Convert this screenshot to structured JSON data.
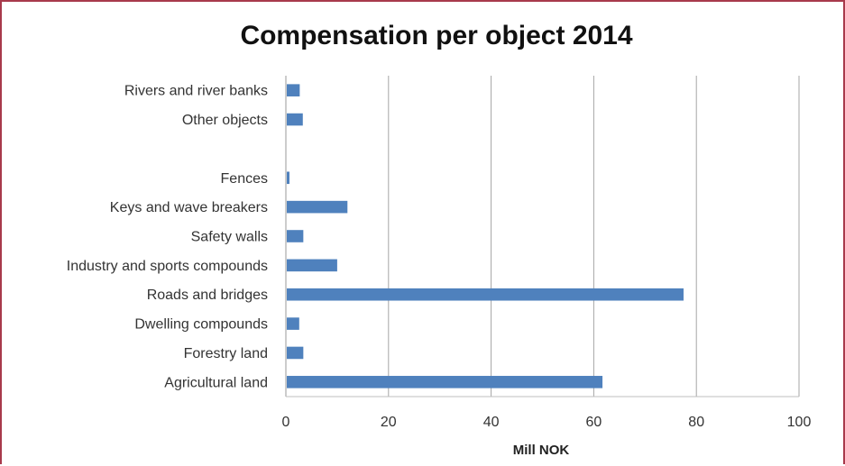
{
  "chart_data": {
    "type": "bar",
    "orientation": "horizontal",
    "title": "Compensation per object 2014",
    "xlabel": "Mill NOK",
    "ylabel": "",
    "xlim": [
      0,
      100
    ],
    "xticks": [
      0,
      20,
      40,
      60,
      80,
      100
    ],
    "grid": "vertical",
    "bar_color": "#4f81bd",
    "categories": [
      "Rivers and river banks",
      "Other objects",
      "",
      "Fences",
      "Keys and wave breakers",
      "Safety walls",
      "Industry and sports compounds",
      "Roads and bridges",
      "Dwelling compounds",
      "Forestry land",
      "Agricultural land"
    ],
    "values": [
      2.7,
      3.3,
      null,
      0.7,
      12,
      3.4,
      10,
      77.5,
      2.6,
      3.4,
      61.7
    ]
  }
}
